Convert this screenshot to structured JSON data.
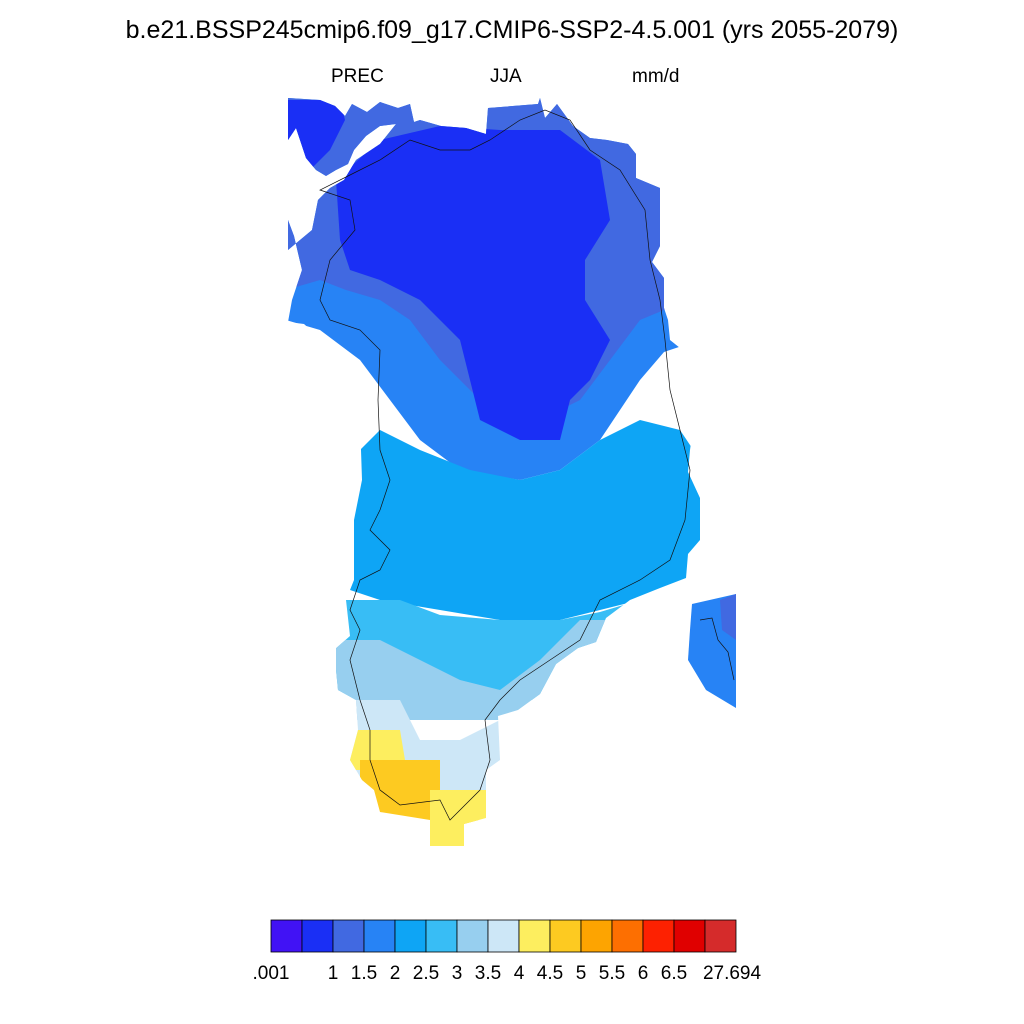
{
  "title": "b.e21.BSSP245cmip6.f09_g17.CMIP6-SSP2-4.5.001 (yrs 2055-2079)",
  "left_string": "PREC",
  "center_string": "JJA",
  "right_string": "mm/d",
  "chart_data": {
    "type": "heatmap",
    "variable": "PREC",
    "season": "JJA",
    "units": "mm/d",
    "region_shown": "Greenland",
    "colorbar": {
      "orientation": "horizontal",
      "labels": [
        ".001",
        "1",
        "1.5",
        "2",
        "2.5",
        "3",
        "3.5",
        "4",
        "4.5",
        "5",
        "5.5",
        "6",
        "6.5",
        "27.694"
      ],
      "colors": [
        "#4112f5",
        "#1a2ff5",
        "#4169e1",
        "#2783f5",
        "#0ea5f5",
        "#38bdf5",
        "#97cfef",
        "#cde7f7",
        "#fdee5f",
        "#fdca21",
        "#fda401",
        "#fd6f01",
        "#fd2101",
        "#e00000",
        "#d52b2b"
      ]
    }
  }
}
